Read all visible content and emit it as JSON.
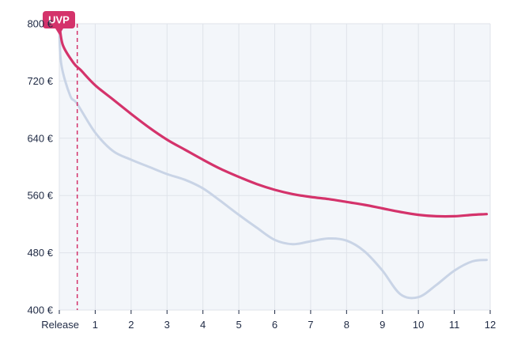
{
  "chart_data": {
    "type": "line",
    "title": "",
    "xlabel": "",
    "ylabel": "",
    "x_ticks": [
      {
        "x": 0,
        "label": "Release"
      },
      {
        "x": 1,
        "label": "1"
      },
      {
        "x": 2,
        "label": "2"
      },
      {
        "x": 3,
        "label": "3"
      },
      {
        "x": 4,
        "label": "4"
      },
      {
        "x": 5,
        "label": "5"
      },
      {
        "x": 6,
        "label": "6"
      },
      {
        "x": 7,
        "label": "7"
      },
      {
        "x": 8,
        "label": "8"
      },
      {
        "x": 9,
        "label": "9"
      },
      {
        "x": 10,
        "label": "10"
      },
      {
        "x": 11,
        "label": "11"
      },
      {
        "x": 12,
        "label": "12"
      }
    ],
    "y_ticks": [
      {
        "y": 400,
        "label": "400 €"
      },
      {
        "y": 480,
        "label": "480 €"
      },
      {
        "y": 560,
        "label": "560 €"
      },
      {
        "y": 640,
        "label": "640 €"
      },
      {
        "y": 720,
        "label": "720 €"
      },
      {
        "y": 800,
        "label": "800 €"
      }
    ],
    "xlim": [
      0,
      12
    ],
    "ylim": [
      400,
      800
    ],
    "grid": true,
    "series": [
      {
        "color": "#c9d4e6",
        "points": [
          [
            0,
            800
          ],
          [
            0.05,
            745
          ],
          [
            0.3,
            700
          ],
          [
            0.5,
            688
          ],
          [
            1,
            648
          ],
          [
            1.5,
            622
          ],
          [
            2,
            610
          ],
          [
            2.5,
            600
          ],
          [
            3,
            590
          ],
          [
            3.5,
            582
          ],
          [
            4,
            570
          ],
          [
            4.5,
            552
          ],
          [
            5,
            533
          ],
          [
            5.5,
            515
          ],
          [
            6,
            498
          ],
          [
            6.5,
            492
          ],
          [
            7,
            496
          ],
          [
            7.5,
            500
          ],
          [
            8,
            497
          ],
          [
            8.5,
            482
          ],
          [
            9,
            455
          ],
          [
            9.5,
            422
          ],
          [
            10,
            418
          ],
          [
            10.5,
            435
          ],
          [
            11,
            455
          ],
          [
            11.5,
            468
          ],
          [
            11.9,
            470
          ]
        ]
      },
      {
        "color": "#d4336b",
        "points": [
          [
            0,
            800
          ],
          [
            0.1,
            770
          ],
          [
            0.4,
            745
          ],
          [
            0.6,
            735
          ],
          [
            1,
            714
          ],
          [
            1.5,
            694
          ],
          [
            2,
            674
          ],
          [
            2.5,
            655
          ],
          [
            3,
            638
          ],
          [
            3.5,
            624
          ],
          [
            4,
            610
          ],
          [
            4.5,
            597
          ],
          [
            5,
            586
          ],
          [
            5.5,
            576
          ],
          [
            6,
            568
          ],
          [
            6.5,
            562
          ],
          [
            7,
            558
          ],
          [
            7.5,
            555
          ],
          [
            8,
            551
          ],
          [
            8.5,
            547
          ],
          [
            9,
            542
          ],
          [
            9.5,
            537
          ],
          [
            10,
            533
          ],
          [
            10.5,
            531
          ],
          [
            11,
            531
          ],
          [
            11.5,
            533
          ],
          [
            11.9,
            534
          ]
        ]
      }
    ],
    "annotations": [
      {
        "type": "marker",
        "label": "UVP",
        "x": 0.5,
        "y": 800,
        "color": "#d4336b",
        "line": "dashed-vertical"
      }
    ]
  }
}
